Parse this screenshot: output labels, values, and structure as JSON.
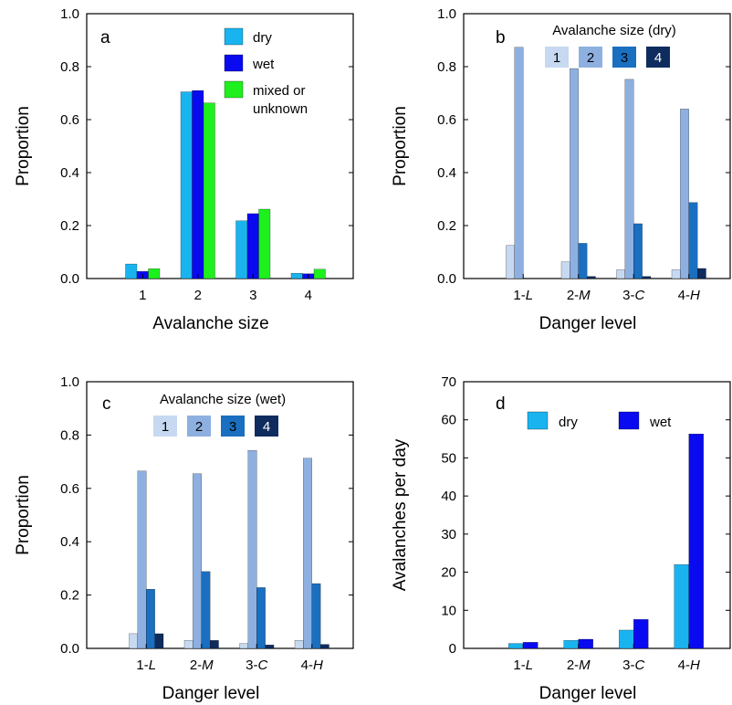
{
  "chart_data": [
    {
      "panel": "a",
      "type": "bar",
      "xlabel": "Avalanche size",
      "ylabel": "Proportion",
      "categories": [
        "1",
        "2",
        "3",
        "4"
      ],
      "ylim": [
        0,
        1.0
      ],
      "yticks": [
        "0.0",
        "0.2",
        "0.4",
        "0.6",
        "0.8",
        "1.0"
      ],
      "legend_title": "",
      "legend_position": "top-right",
      "series": [
        {
          "name": "dry",
          "color": "#19b4f0",
          "values": [
            0.055,
            0.705,
            0.218,
            0.02
          ]
        },
        {
          "name": "wet",
          "color": "#0a0af0",
          "values": [
            0.027,
            0.71,
            0.245,
            0.018
          ]
        },
        {
          "name": "mixed or unknown",
          "color": "#1ef01e",
          "values": [
            0.037,
            0.663,
            0.262,
            0.035
          ]
        }
      ]
    },
    {
      "panel": "b",
      "type": "bar",
      "xlabel": "Danger level",
      "ylabel": "Proportion",
      "categories": [
        "1-L",
        "2-M",
        "3-C",
        "4-H"
      ],
      "ylim": [
        0,
        1.0
      ],
      "yticks": [
        "0.0",
        "0.2",
        "0.4",
        "0.6",
        "0.8",
        "1.0"
      ],
      "legend_title": "Avalanche size (dry)",
      "legend_position": "top-right",
      "series": [
        {
          "name": "1",
          "color": "#c6d9f1",
          "values": [
            0.125,
            0.063,
            0.033,
            0.033
          ]
        },
        {
          "name": "2",
          "color": "#8eb0e0",
          "values": [
            0.873,
            0.793,
            0.752,
            0.64
          ]
        },
        {
          "name": "3",
          "color": "#1a6fc0",
          "values": [
            0.0,
            0.133,
            0.207,
            0.287
          ]
        },
        {
          "name": "4",
          "color": "#0f2c5e",
          "values": [
            0.0,
            0.008,
            0.008,
            0.038
          ]
        }
      ]
    },
    {
      "panel": "c",
      "type": "bar",
      "xlabel": "Danger level",
      "ylabel": "Proportion",
      "categories": [
        "1-L",
        "2-M",
        "3-C",
        "4-H"
      ],
      "ylim": [
        0,
        1.0
      ],
      "yticks": [
        "0.0",
        "0.2",
        "0.4",
        "0.6",
        "0.8",
        "1.0"
      ],
      "legend_title": "Avalanche size (wet)",
      "legend_position": "top-center",
      "series": [
        {
          "name": "1",
          "color": "#c6d9f1",
          "values": [
            0.055,
            0.03,
            0.018,
            0.03
          ]
        },
        {
          "name": "2",
          "color": "#8eb0e0",
          "values": [
            0.665,
            0.655,
            0.742,
            0.713
          ]
        },
        {
          "name": "3",
          "color": "#1a6fc0",
          "values": [
            0.222,
            0.288,
            0.228,
            0.243
          ]
        },
        {
          "name": "4",
          "color": "#0f2c5e",
          "values": [
            0.055,
            0.03,
            0.013,
            0.015
          ]
        }
      ]
    },
    {
      "panel": "d",
      "type": "bar",
      "xlabel": "Danger level",
      "ylabel": "Avalanches per day",
      "categories": [
        "1-L",
        "2-M",
        "3-C",
        "4-H"
      ],
      "ylim": [
        0,
        70
      ],
      "yticks": [
        "0",
        "10",
        "20",
        "30",
        "40",
        "50",
        "60",
        "70"
      ],
      "legend_title": "",
      "legend_position": "top-center",
      "series": [
        {
          "name": "dry",
          "color": "#19b4f0",
          "values": [
            1.3,
            2.1,
            4.8,
            22.0
          ]
        },
        {
          "name": "wet",
          "color": "#0a0af0",
          "values": [
            1.6,
            2.4,
            7.6,
            56.3
          ]
        }
      ]
    }
  ]
}
